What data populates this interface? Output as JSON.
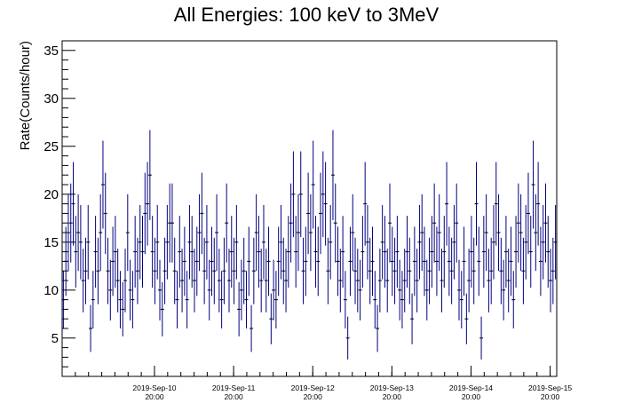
{
  "chart_data": {
    "type": "scatter",
    "title": "All Energies:  100 keV to 3MeV",
    "ylabel": "Rate(Counts/hour)",
    "xlabel": "",
    "ylim": [
      1,
      36
    ],
    "xlim": [
      "2019-09-09 16:00",
      "2019-09-15 22:00"
    ],
    "bin_width_hours": 1,
    "grid": false,
    "legend": "none",
    "marker_color": "#000080",
    "y_ticks": [
      5,
      10,
      15,
      20,
      25,
      30,
      35
    ],
    "y_tick_labels": [
      "5",
      "10",
      "15",
      "20",
      "25",
      "30",
      "35"
    ],
    "x_tick_labels": [
      {
        "date": "2019-Sep-10",
        "time": "20:00",
        "x": "2019-09-10 20:00"
      },
      {
        "date": "2019-Sep-11",
        "time": "20:00",
        "x": "2019-09-11 20:00"
      },
      {
        "date": "2019-Sep-12",
        "time": "20:00",
        "x": "2019-09-12 20:00"
      },
      {
        "date": "2019-Sep-13",
        "time": "20:00",
        "x": "2019-09-13 20:00"
      },
      {
        "date": "2019-Sep-14",
        "time": "20:00",
        "x": "2019-09-14 20:00"
      },
      {
        "date": "2019-Sep-15",
        "time": "20:00",
        "x": "2019-09-15 20:00"
      }
    ],
    "series": [
      {
        "values": [
          9,
          13,
          16,
          17,
          19,
          14,
          16,
          15,
          11,
          12,
          15,
          6,
          9,
          14,
          12,
          16,
          21,
          18,
          12,
          10,
          13,
          14,
          11,
          9,
          8,
          11,
          16,
          10,
          9,
          14,
          12,
          15,
          14,
          18,
          19,
          22,
          14,
          12,
          15,
          10,
          8,
          12,
          15,
          17,
          17,
          12,
          9,
          14,
          11,
          13,
          9,
          15,
          14,
          11,
          13,
          16,
          18,
          12,
          15,
          10,
          13,
          12,
          16,
          11,
          9,
          12,
          17,
          11,
          14,
          12,
          15,
          8,
          10,
          12,
          9,
          13,
          6,
          12,
          16,
          14,
          11,
          15,
          11,
          13,
          7,
          10,
          9,
          13,
          15,
          12,
          11,
          14,
          17,
          20,
          14,
          16,
          20,
          12,
          13,
          18,
          16,
          21,
          14,
          13,
          18,
          20,
          19,
          12,
          15,
          22,
          17,
          13,
          11,
          14,
          9,
          5,
          13,
          16,
          12,
          11,
          10,
          14,
          19,
          15,
          12,
          13,
          9,
          6,
          11,
          15,
          14,
          11,
          17,
          13,
          12,
          14,
          10,
          9,
          11,
          14,
          12,
          7,
          13,
          11,
          15,
          16,
          13,
          10,
          12,
          14,
          17,
          13,
          16,
          11,
          14,
          19,
          13,
          12,
          15,
          17,
          10,
          9,
          13,
          7,
          11,
          14,
          12,
          19,
          13,
          5,
          14,
          16,
          11,
          12,
          15,
          19,
          16,
          12,
          10,
          14,
          11,
          13,
          9,
          14,
          17,
          16,
          12,
          15,
          18,
          14,
          21,
          16,
          19,
          13,
          15,
          17,
          14,
          11,
          12,
          15
        ]
      }
    ]
  }
}
